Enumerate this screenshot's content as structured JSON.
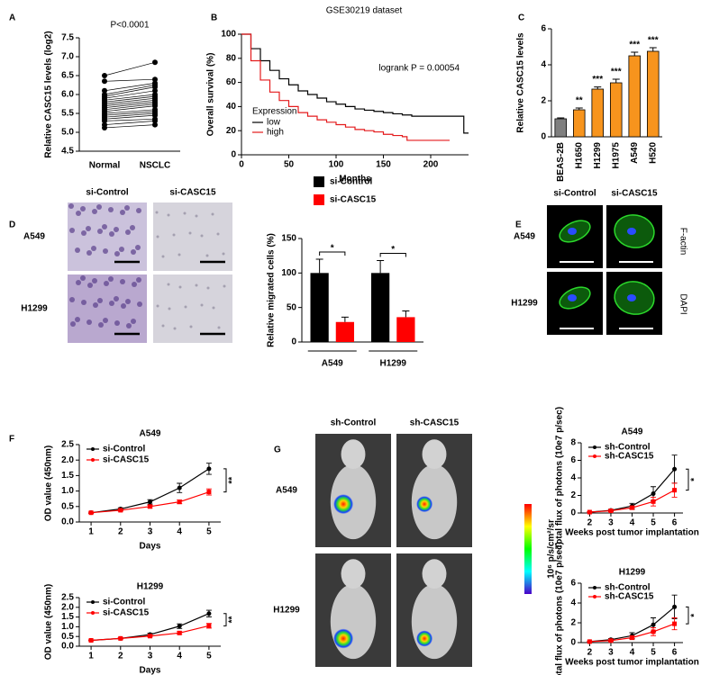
{
  "chart_data": [
    {
      "panel": "A",
      "type": "paired",
      "annotation": "P<0.0001",
      "ylabel": "Relative CASC15 levels (log2)",
      "categories": [
        "Normal",
        "NSCLC"
      ],
      "values": [
        [
          6.5,
          6.35,
          6.1,
          6.0,
          5.95,
          5.9,
          5.85,
          5.8,
          5.75,
          5.7,
          5.65,
          5.6,
          5.55,
          5.5,
          5.45,
          5.4,
          5.35,
          5.3,
          5.2,
          5.12
        ],
        [
          6.85,
          6.4,
          6.3,
          6.25,
          6.2,
          6.1,
          6.0,
          5.95,
          5.9,
          5.85,
          5.8,
          5.75,
          5.7,
          5.6,
          5.55,
          5.5,
          5.45,
          5.35,
          5.3,
          5.2
        ]
      ],
      "color": "#000000",
      "ylim": [
        4.5,
        7.5
      ],
      "yticks": [
        4.5,
        {
          "value": 5,
          "label": "5.0"
        },
        5.5,
        {
          "value": 6,
          "label": "6.0"
        },
        6.5,
        {
          "value": 7,
          "label": "7.0"
        },
        7.5
      ]
    },
    {
      "panel": "B",
      "type": "step",
      "title": "GSE30219 dataset",
      "annotation": "logrank P = 0.00054",
      "xlabel": "Months",
      "ylabel": "Overall survival (%)",
      "legend_title": "Expression",
      "legend": "lower left",
      "series": [
        {
          "name": "low",
          "color": "#000000",
          "x": [
            0,
            10,
            20,
            30,
            40,
            50,
            60,
            70,
            80,
            90,
            100,
            110,
            120,
            130,
            140,
            150,
            160,
            170,
            180,
            190,
            200,
            210,
            220,
            230,
            235,
            240
          ],
          "values": [
            100,
            88,
            78,
            70,
            63,
            58,
            53,
            50,
            47,
            44,
            42,
            40,
            38,
            37,
            36,
            35,
            34,
            33,
            32,
            32,
            32,
            32,
            32,
            32,
            18,
            18
          ]
        },
        {
          "name": "high",
          "color": "#e41a1c",
          "x": [
            0,
            10,
            20,
            30,
            40,
            50,
            60,
            70,
            80,
            90,
            100,
            110,
            120,
            130,
            140,
            150,
            160,
            170,
            175,
            180,
            200,
            220
          ],
          "values": [
            100,
            78,
            62,
            52,
            45,
            40,
            35,
            32,
            29,
            27,
            25,
            23,
            21,
            20,
            19,
            17,
            16,
            15,
            12,
            12,
            12,
            12
          ]
        }
      ],
      "xlim": [
        0,
        240
      ],
      "xticks": [
        0,
        50,
        100,
        150,
        200
      ],
      "ylim": [
        0,
        100
      ],
      "yticks": [
        0,
        20,
        40,
        60,
        80,
        100
      ]
    },
    {
      "panel": "C",
      "type": "bar",
      "ylabel": "Relative CASC15 levels",
      "categories": [
        "BEAS-2B",
        "H1650",
        "H1299",
        "H1975",
        "A549",
        "H520"
      ],
      "values": [
        1.0,
        1.5,
        2.65,
        3.0,
        4.5,
        4.75
      ],
      "errors": [
        0.05,
        0.1,
        0.12,
        0.2,
        0.2,
        0.2
      ],
      "significance": [
        null,
        "**",
        "***",
        "***",
        "***",
        "***"
      ],
      "colors": [
        "#7f7f7f",
        "#f7941d",
        "#f7941d",
        "#f7941d",
        "#f7941d",
        "#f7941d"
      ],
      "ylim": [
        0,
        6
      ],
      "yticks": [
        0,
        2,
        4,
        6
      ]
    },
    {
      "type": "grouped_bar",
      "ylabel": "Relative migrated cells (%)",
      "categories": [
        "A549",
        "H1299"
      ],
      "series": [
        {
          "name": "si-Control",
          "color": "#000000",
          "values": [
            100,
            100
          ],
          "errors": [
            20,
            18
          ]
        },
        {
          "name": "si-CASC15",
          "color": "#ff0000",
          "values": [
            29,
            36
          ],
          "errors": [
            7,
            9
          ]
        }
      ],
      "significance": [
        "*",
        "*"
      ],
      "ylim": [
        0,
        150
      ],
      "yticks": [
        0,
        50,
        100,
        150
      ]
    },
    {
      "panel": "F",
      "type": "errorline",
      "title": "A549",
      "xlabel": "Days",
      "ylabel": "OD value (450nm)",
      "x": [
        1,
        2,
        3,
        4,
        5
      ],
      "series": [
        {
          "name": "si-Control",
          "color": "#000000",
          "values": [
            0.3,
            0.42,
            0.65,
            1.1,
            1.72
          ],
          "errors": [
            0.02,
            0.04,
            0.07,
            0.15,
            0.18
          ]
        },
        {
          "name": "si-CASC15",
          "color": "#ff0000",
          "values": [
            0.3,
            0.38,
            0.5,
            0.65,
            0.97
          ],
          "errors": [
            0.02,
            0.03,
            0.04,
            0.06,
            0.1
          ]
        }
      ],
      "significance": "**",
      "xlim": [
        0.6,
        5.4
      ],
      "xticks": [
        1,
        2,
        3,
        4,
        5
      ],
      "ylim": [
        0,
        2.5
      ],
      "yticks": [
        {
          "value": 0,
          "label": "0.0"
        },
        0.5,
        {
          "value": 1,
          "label": "1.0"
        },
        1.5,
        {
          "value": 2,
          "label": "2.0"
        },
        2.5
      ]
    },
    {
      "type": "errorline",
      "title": "H1299",
      "xlabel": "Days",
      "ylabel": "OD value (450nm)",
      "x": [
        1,
        2,
        3,
        4,
        5
      ],
      "series": [
        {
          "name": "si-Control",
          "color": "#000000",
          "values": [
            0.3,
            0.4,
            0.6,
            1.03,
            1.68
          ],
          "errors": [
            0.02,
            0.03,
            0.06,
            0.12,
            0.17
          ]
        },
        {
          "name": "si-CASC15",
          "color": "#ff0000",
          "values": [
            0.3,
            0.4,
            0.52,
            0.68,
            1.05
          ],
          "errors": [
            0.02,
            0.03,
            0.05,
            0.07,
            0.12
          ]
        }
      ],
      "significance": "**",
      "xlim": [
        0.6,
        5.4
      ],
      "xticks": [
        1,
        2,
        3,
        4,
        5
      ],
      "ylim": [
        0,
        2.5
      ],
      "yticks": [
        {
          "value": 0,
          "label": "0.0"
        },
        0.5,
        {
          "value": 1,
          "label": "1.0"
        },
        1.5,
        {
          "value": 2,
          "label": "2.0"
        },
        2.5
      ]
    },
    {
      "type": "errorline",
      "title": "A549",
      "xlabel": "Weeks post tumor implantation",
      "ylabel": "Total flux of photons (10e7 p/sec)",
      "x": [
        2,
        3,
        4,
        5,
        6
      ],
      "series": [
        {
          "name": "sh-Control",
          "color": "#000000",
          "values": [
            0.1,
            0.3,
            0.8,
            2.2,
            5
          ],
          "errors": [
            0.05,
            0.1,
            0.3,
            0.8,
            1.6
          ]
        },
        {
          "name": "sh-CASC15",
          "color": "#ff0000",
          "values": [
            0.1,
            0.25,
            0.6,
            1.3,
            2.6
          ],
          "errors": [
            0.05,
            0.1,
            0.2,
            0.5,
            0.8
          ]
        }
      ],
      "significance": "*",
      "xlim": [
        1.6,
        6.4
      ],
      "xticks": [
        2,
        3,
        4,
        5,
        6
      ],
      "ylim": [
        0,
        8
      ],
      "yticks": [
        0,
        2,
        4,
        6,
        8
      ]
    },
    {
      "type": "errorline",
      "title": "H1299",
      "xlabel": "Weeks post tumor implantation",
      "ylabel": "Total flux of photons (10e7 p/sec)",
      "x": [
        2,
        3,
        4,
        5,
        6
      ],
      "series": [
        {
          "name": "sh-Control",
          "color": "#000000",
          "values": [
            0.1,
            0.3,
            0.7,
            1.8,
            3.6
          ],
          "errors": [
            0.05,
            0.1,
            0.3,
            0.7,
            1.2
          ]
        },
        {
          "name": "sh-CASC15",
          "color": "#ff0000",
          "values": [
            0.1,
            0.2,
            0.5,
            1.1,
            1.9
          ],
          "errors": [
            0.05,
            0.08,
            0.2,
            0.4,
            0.6
          ]
        }
      ],
      "significance": "*",
      "xlim": [
        1.6,
        6.4
      ],
      "xticks": [
        2,
        3,
        4,
        5,
        6
      ],
      "ylim": [
        0,
        6
      ],
      "yticks": [
        0,
        2,
        4,
        6
      ]
    }
  ],
  "image_panels": [
    {
      "panel": "D",
      "columns": [
        "si-Control",
        "si-CASC15"
      ],
      "rows": [
        "A549",
        "H1299"
      ]
    },
    {
      "panel": "E",
      "columns": [
        "si-Control",
        "si-CASC15"
      ],
      "rows": [
        "A549",
        "H1299"
      ],
      "stains": [
        "F-actin",
        "DAPI"
      ]
    },
    {
      "panel": "G",
      "columns": [
        "sh-Control",
        "sh-CASC15"
      ],
      "rows": [
        "A549",
        "H1299"
      ],
      "colorbar_label": "10⁶ p/s/cm²/sr"
    }
  ]
}
